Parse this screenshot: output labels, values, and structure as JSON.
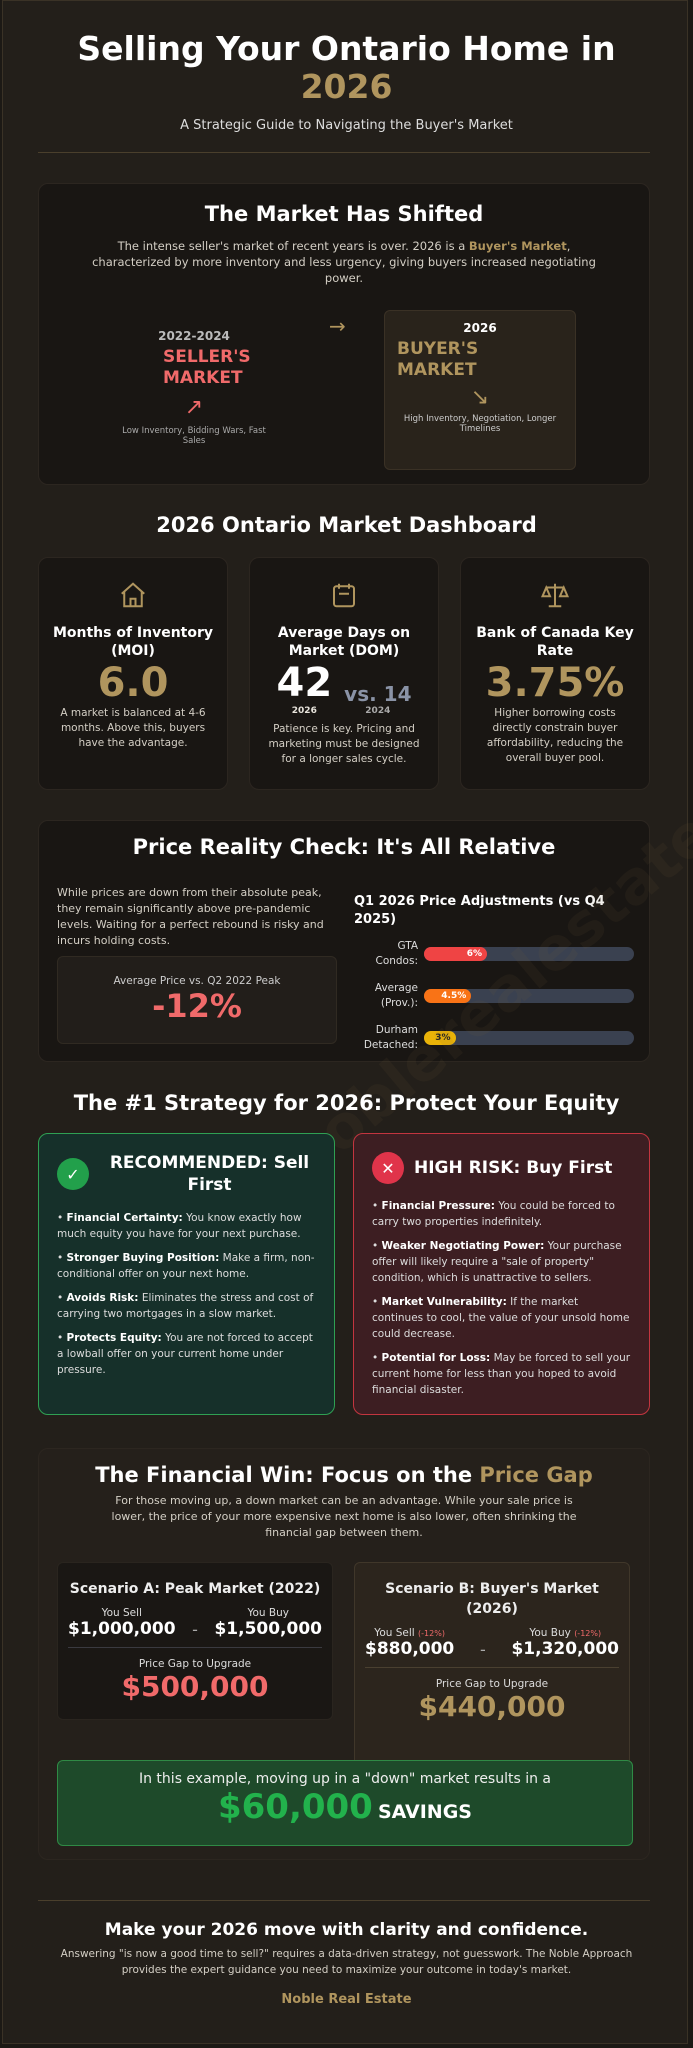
{
  "header": {
    "title": "Selling Your Ontario Home in",
    "title_year": "2026",
    "subtitle": "A Strategic Guide to Navigating the Buyer's Market"
  },
  "shift": {
    "title": "The Market Has Shifted",
    "text_before": "The intense seller's market of recent years is over. 2026 is a ",
    "text_highlight": "Buyer's Market",
    "text_after": ", characterized by more inventory and less urgency, giving buyers increased negotiating power.",
    "seller": {
      "years": "2022-2024",
      "label": "SELLER'S MARKET",
      "desc": "Low Inventory, Bidding Wars, Fast Sales"
    },
    "buyer": {
      "years": "2026",
      "label": "BUYER'S MARKET",
      "desc": "High Inventory, Negotiation, Longer Timelines"
    }
  },
  "dashboard": {
    "title": "2026 Ontario Market Dashboard",
    "cards": [
      {
        "icon": "house-icon",
        "title": "Months of Inventory (MOI)",
        "value": "6.0",
        "desc": "A market is balanced at 4-6 months. Above this, buyers have the advantage."
      },
      {
        "icon": "calendar-icon",
        "title": "Average Days on Market (DOM)",
        "value": "42",
        "value_year": "2026",
        "compare_prefix": "vs. 14",
        "compare_year": "2024",
        "desc": "Patience is key. Pricing and marketing must be designed for a longer sales cycle."
      },
      {
        "icon": "scales-icon",
        "title": "Bank of Canada Key Rate",
        "value": "3.75%",
        "desc": "Higher borrowing costs directly constrain buyer affordability, reducing the overall buyer pool."
      }
    ]
  },
  "price": {
    "title": "Price Reality Check: It's All Relative",
    "text": "While prices are down from their absolute peak, they remain significantly above pre-pandemic levels. Waiting for a perfect rebound is risky and incurs holding costs.",
    "stat_label": "Average Price vs. Q2 2022 Peak",
    "stat_value": "-12%"
  },
  "chart_data": {
    "type": "bar",
    "title": "Q1 2026 Price Adjustments (vs Q4 2025)",
    "categories": [
      "GTA Condos:",
      "Average (Prov.):",
      "Durham Detached:"
    ],
    "values": [
      6,
      4.5,
      3
    ],
    "labels": [
      "6%",
      "4.5%",
      "3%"
    ],
    "colors": [
      "#ef4444",
      "#f97316",
      "#eab308"
    ],
    "xlim": [
      0,
      20
    ],
    "orientation": "horizontal"
  },
  "strategy": {
    "title": "The #1 Strategy for 2026: Protect Your Equity",
    "recommended": {
      "title": "RECOMMENDED: Sell First",
      "items": [
        {
          "b": "Financial Certainty:",
          "t": " You know exactly how much equity you have for your next purchase."
        },
        {
          "b": "Stronger Buying Position:",
          "t": " Make a firm, non-conditional offer on your next home."
        },
        {
          "b": "Avoids Risk:",
          "t": " Eliminates the stress and cost of carrying two mortgages in a slow market."
        },
        {
          "b": "Protects Equity:",
          "t": " You are not forced to accept a lowball offer on your current home under pressure."
        }
      ]
    },
    "risk": {
      "title": "HIGH RISK: Buy First",
      "items": [
        {
          "b": "Financial Pressure:",
          "t": " You could be forced to carry two properties indefinitely."
        },
        {
          "b": "Weaker Negotiating Power:",
          "t": " Your purchase offer will likely require a \"sale of property\" condition, which is unattractive to sellers."
        },
        {
          "b": "Market Vulnerability:",
          "t": " If the market continues to cool, the value of your unsold home could decrease."
        },
        {
          "b": "Potential for Loss:",
          "t": " May be forced to sell your current home for less than you hoped to avoid financial disaster."
        }
      ]
    }
  },
  "financial": {
    "title": "The Financial Win: Focus on the ",
    "title_highlight": "Price Gap",
    "text": "For those moving up, a down market can be an advantage. While your sale price is lower, the price of your more expensive next home is also lower, often shrinking the financial gap between them.",
    "a": {
      "title": "Scenario A: Peak Market (2022)",
      "sell_label": "You Sell",
      "sell": "$1,000,000",
      "buy_label": "You Buy",
      "buy": "$1,500,000",
      "gap_label": "Price Gap to Upgrade",
      "gap": "$500,000"
    },
    "b": {
      "title": "Scenario B: Buyer's Market (2026)",
      "sell_label": "You Sell",
      "sell_change": "(-12%)",
      "sell": "$880,000",
      "buy_label": "You Buy",
      "buy_change": "(-12%)",
      "buy": "$1,320,000",
      "gap_label": "Price Gap to Upgrade",
      "gap": "$440,000"
    },
    "savings_text": "In this example, moving up in a \"down\" market results in a",
    "savings_value": "$60,000",
    "savings_label": "SAVINGS"
  },
  "footer": {
    "title": "Make your 2026 move with clarity and confidence.",
    "text": "Answering \"is now a good time to sell?\" requires a data-driven strategy, not guesswork. The Noble Approach provides the expert guidance you need to maximize your outcome in today's market.",
    "brand": "Noble Real Estate"
  },
  "watermark": "noblerealestate.ca",
  "colors": {
    "gold": "#b0955e",
    "red": "#f06a6a",
    "green": "#22a04b",
    "bg": "#231f1a"
  }
}
